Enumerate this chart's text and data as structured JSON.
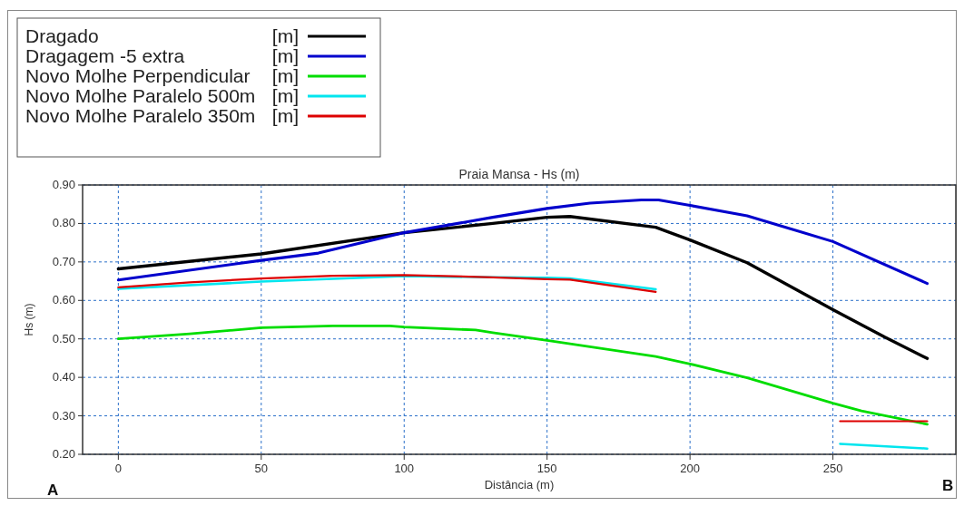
{
  "chart_data": {
    "type": "line",
    "title": "Praia Mansa - Hs (m)",
    "xlabel": "Distância (m)",
    "ylabel": "Hs (m)",
    "xlim": [
      -12.5,
      293
    ],
    "xticks": [
      0,
      50,
      100,
      150,
      200,
      250
    ],
    "ylim": [
      0.2,
      0.9
    ],
    "yticks": [
      {
        "value": 0.2,
        "label": "0.20"
      },
      {
        "value": 0.3,
        "label": "0.30"
      },
      {
        "value": 0.4,
        "label": "0.40"
      },
      {
        "value": 0.5,
        "label": "0.50"
      },
      {
        "value": 0.6,
        "label": "0.60"
      },
      {
        "value": 0.7,
        "label": "0.70"
      },
      {
        "value": 0.8,
        "label": "0.80"
      },
      {
        "value": 0.9,
        "label": "0.90"
      }
    ],
    "grid": true,
    "legend": "top left",
    "line_style": "solid",
    "marker": "none",
    "annotations": [
      "A",
      "B"
    ],
    "series": [
      {
        "name": "Dragado [m]",
        "color": "#000000",
        "x": [
          0,
          50,
          100,
          131,
          150,
          158,
          188,
          200,
          220,
          250,
          268,
          283
        ],
        "values": [
          0.682,
          0.721,
          0.776,
          0.8,
          0.816,
          0.818,
          0.79,
          0.757,
          0.698,
          0.576,
          0.505,
          0.449
        ]
      },
      {
        "name": "Dragagem -5 extra [m]",
        "color": "#0000cc",
        "x": [
          0,
          50,
          70,
          100,
          131,
          150,
          165,
          183,
          189,
          200,
          220,
          250,
          283
        ],
        "values": [
          0.653,
          0.704,
          0.723,
          0.776,
          0.816,
          0.839,
          0.853,
          0.861,
          0.861,
          0.847,
          0.82,
          0.753,
          0.644
        ]
      },
      {
        "name": "Novo Molhe Perpendicular [m]",
        "color": "#00dd00",
        "x": [
          0,
          25,
          50,
          75,
          95,
          100,
          125,
          131,
          150,
          188,
          200,
          220,
          250,
          260,
          283
        ],
        "values": [
          0.5,
          0.513,
          0.529,
          0.534,
          0.534,
          0.531,
          0.523,
          0.516,
          0.496,
          0.454,
          0.435,
          0.399,
          0.333,
          0.313,
          0.278
        ]
      },
      {
        "name": "Novo Molhe Paralelo 500m [m]",
        "color": "#00e5ee",
        "x": [
          0,
          50,
          100,
          131,
          150,
          158,
          188,
          220,
          252.5,
          283
        ],
        "values": [
          0.63,
          0.649,
          0.663,
          0.66,
          0.659,
          0.657,
          0.629,
          null,
          0.227,
          0.215
        ]
      },
      {
        "name": "Novo Molhe Paralelo 350m [m]",
        "color": "#dd0000",
        "x": [
          0,
          25,
          50,
          75,
          100,
          131,
          150,
          158,
          188,
          220,
          252.5,
          283
        ],
        "values": [
          0.634,
          0.647,
          0.657,
          0.664,
          0.666,
          0.66,
          0.655,
          0.654,
          0.622,
          null,
          0.286,
          0.286
        ]
      }
    ]
  }
}
